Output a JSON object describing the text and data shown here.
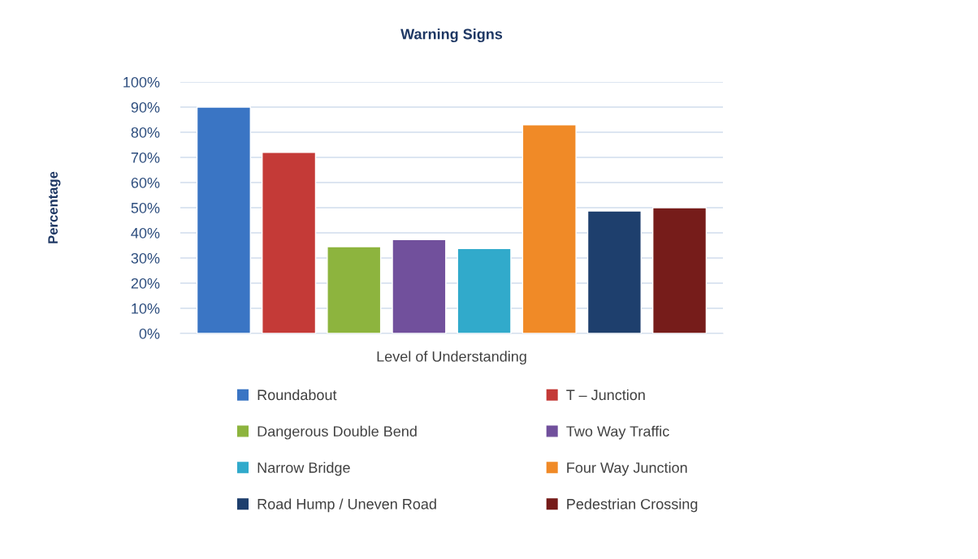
{
  "chart_data": {
    "type": "bar",
    "title": "Warning Signs",
    "xlabel": "Level of Understanding",
    "ylabel": "Percentage",
    "categories": [
      null
    ],
    "series": [
      {
        "name": "Roundabout",
        "color": "#3a75c4",
        "values": [
          90
        ]
      },
      {
        "name": "T – Junction",
        "color": "#c43a37",
        "values": [
          72
        ]
      },
      {
        "name": "Dangerous Double Bend",
        "color": "#8db43e",
        "values": [
          34.5
        ]
      },
      {
        "name": "Two Way Traffic",
        "color": "#71509c",
        "values": [
          37.3
        ]
      },
      {
        "name": "Narrow Bridge",
        "color": "#31aacb",
        "values": [
          33.8
        ]
      },
      {
        "name": "Four Way Junction",
        "color": "#f08a27",
        "values": [
          83
        ]
      },
      {
        "name": "Road Hump / Uneven Road",
        "color": "#1e3f6d",
        "values": [
          48.7
        ]
      },
      {
        "name": "Pedestrian Crossing",
        "color": "#761c1a",
        "values": [
          50
        ]
      }
    ],
    "ylim": [
      0,
      100
    ],
    "yticks": [
      {
        "value": 0,
        "label": "0%"
      },
      {
        "value": 10,
        "label": "10%"
      },
      {
        "value": 20,
        "label": "20%"
      },
      {
        "value": 30,
        "label": "30%"
      },
      {
        "value": 40,
        "label": "40%"
      },
      {
        "value": 50,
        "label": "50%"
      },
      {
        "value": 60,
        "label": "60%"
      },
      {
        "value": 70,
        "label": "70%"
      },
      {
        "value": 80,
        "label": "80%"
      },
      {
        "value": 90,
        "label": "90%"
      },
      {
        "value": 100,
        "label": "100%"
      }
    ],
    "grid": "y",
    "legend": "bottom"
  }
}
